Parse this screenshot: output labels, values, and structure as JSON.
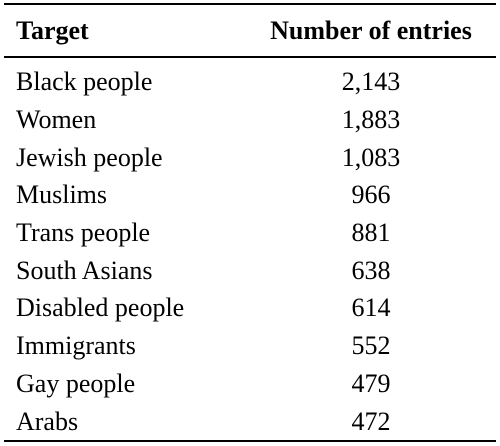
{
  "table": {
    "headers": {
      "target": "Target",
      "count": "Number of entries"
    },
    "rows": [
      {
        "target": "Black people",
        "count": "2,143"
      },
      {
        "target": "Women",
        "count": "1,883"
      },
      {
        "target": "Jewish people",
        "count": "1,083"
      },
      {
        "target": "Muslims",
        "count": "966"
      },
      {
        "target": "Trans people",
        "count": "881"
      },
      {
        "target": "South Asians",
        "count": "638"
      },
      {
        "target": "Disabled people",
        "count": "614"
      },
      {
        "target": "Immigrants",
        "count": "552"
      },
      {
        "target": "Gay people",
        "count": "479"
      },
      {
        "target": "Arabs",
        "count": "472"
      }
    ]
  }
}
